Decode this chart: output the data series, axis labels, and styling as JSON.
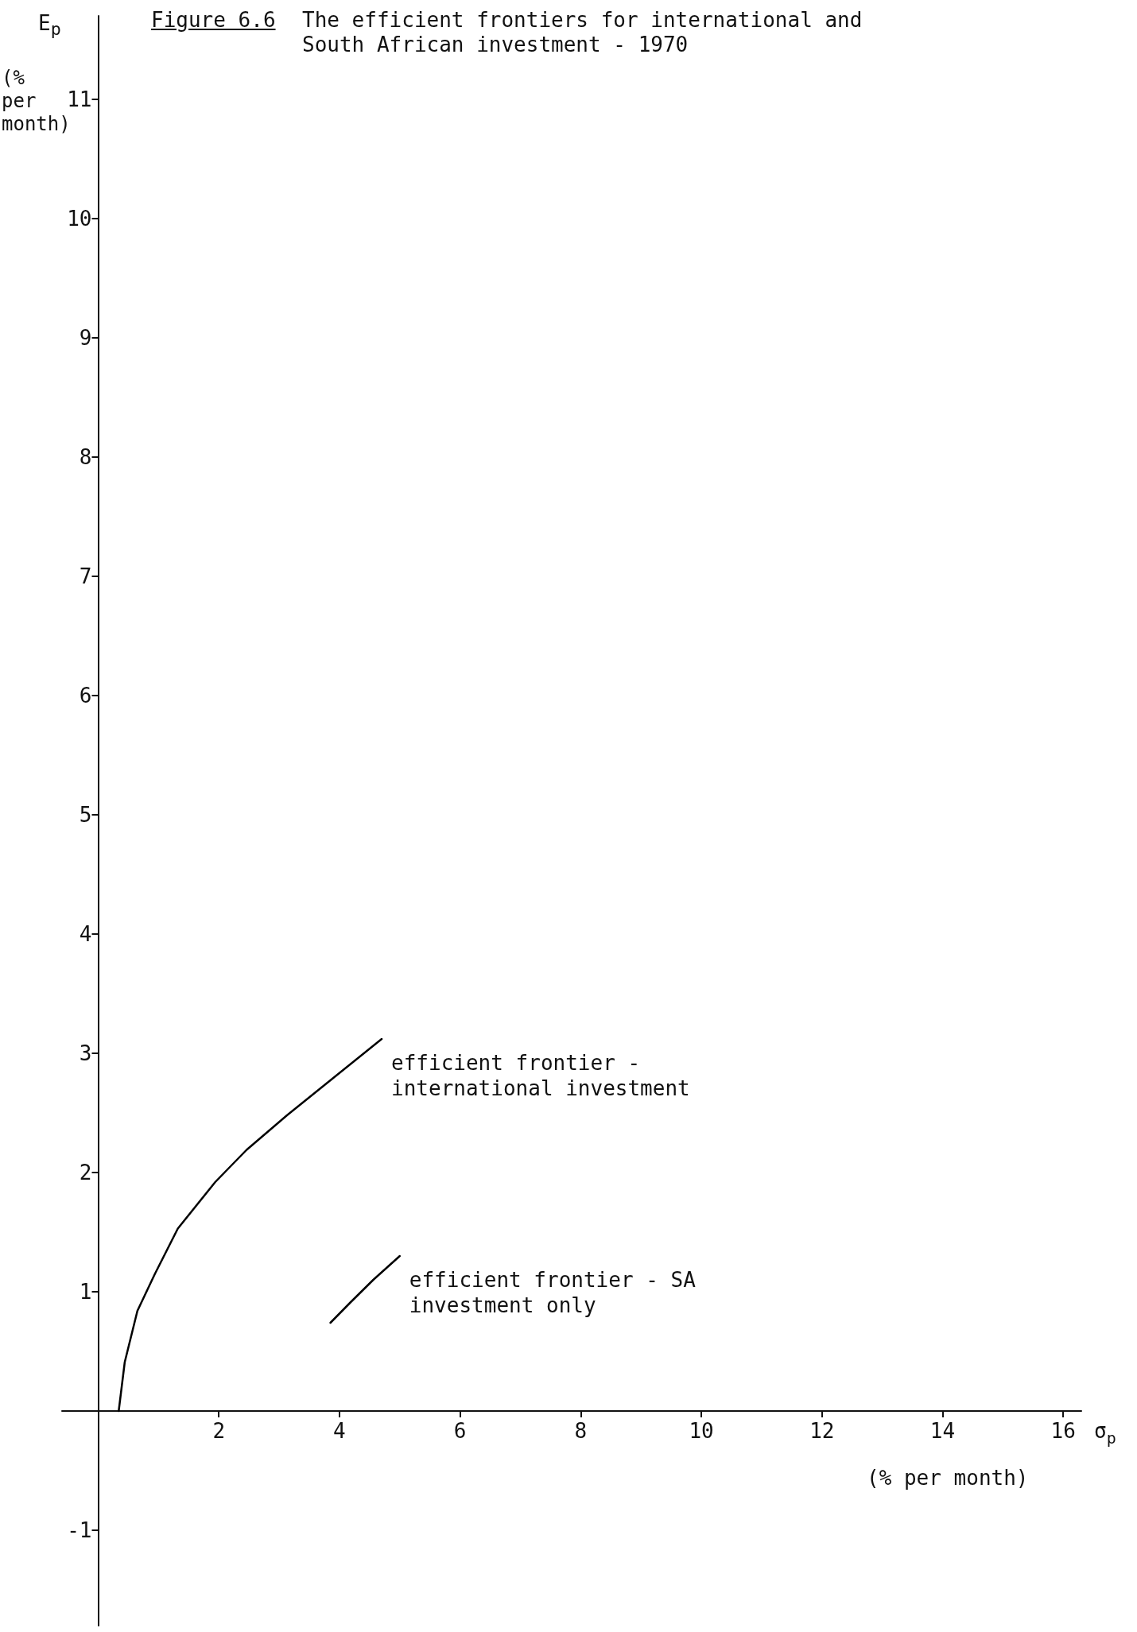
{
  "chart_data": {
    "type": "line",
    "title": "Figure 6.6",
    "subtitle": "The efficient frontiers for international and South African investment - 1970",
    "xlabel": "σ$_{p}$",
    "ylabel": "E$_{p}$",
    "annotations": [
      "(% per month)",
      "(% per month)"
    ],
    "xlim": [
      -0.6,
      16.3
    ],
    "ylim": [
      -1.8,
      11.7
    ],
    "xticks": [
      2,
      4,
      6,
      8,
      10,
      12,
      14,
      16
    ],
    "yticks": [
      -1,
      1,
      2,
      3,
      4,
      5,
      6,
      7,
      8,
      9,
      10,
      11
    ],
    "grid": false,
    "legend": false,
    "marker": "none",
    "line_style": "solid",
    "series": [
      {
        "name": "efficient frontier - international investment",
        "color": "#000000",
        "x": [
          0.34,
          0.44,
          0.65,
          0.94,
          1.32,
          1.94,
          2.46,
          3.13,
          3.89,
          4.7
        ],
        "values": [
          0,
          0.41,
          0.84,
          1.15,
          1.53,
          1.92,
          2.19,
          2.48,
          2.79,
          3.12
        ]
      },
      {
        "name": "efficient frontier - SA investment only",
        "color": "#000000",
        "x": [
          3.85,
          4.18,
          4.56,
          5.0
        ],
        "values": [
          0.74,
          0.91,
          1.1,
          1.3
        ]
      }
    ]
  }
}
